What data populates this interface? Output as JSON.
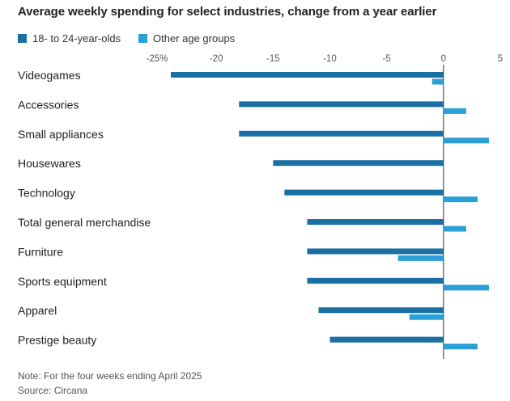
{
  "chart_data": {
    "type": "bar",
    "orientation": "horizontal",
    "title": "Average weekly spending for select industries, change from a year earlier",
    "xlabel": "",
    "ylabel": "",
    "xlim": [
      -25,
      5
    ],
    "ticks": [
      -25,
      -20,
      -15,
      -10,
      -5,
      0,
      5
    ],
    "tick_labels": [
      "-25%",
      "-20",
      "-15",
      "-10",
      "-5",
      "0",
      "5"
    ],
    "categories": [
      "Videogames",
      "Accessories",
      "Small appliances",
      "Housewares",
      "Technology",
      "Total general merchandise",
      "Furniture",
      "Sports equipment",
      "Apparel",
      "Prestige beauty"
    ],
    "series": [
      {
        "name": "18- to 24-year-olds",
        "color": "#1a6fa3",
        "values": [
          -24,
          -18,
          -18,
          -15,
          -14,
          -12,
          -12,
          -12,
          -11,
          -10
        ]
      },
      {
        "name": "Other age groups",
        "color": "#2a9fd8",
        "values": [
          -1,
          2,
          4,
          0,
          3,
          2,
          -4,
          4,
          -3,
          3
        ]
      }
    ],
    "legend_position": "top-left"
  },
  "notes": {
    "note": "Note: For the four weeks ending April 2025",
    "source": "Source: Circana"
  }
}
